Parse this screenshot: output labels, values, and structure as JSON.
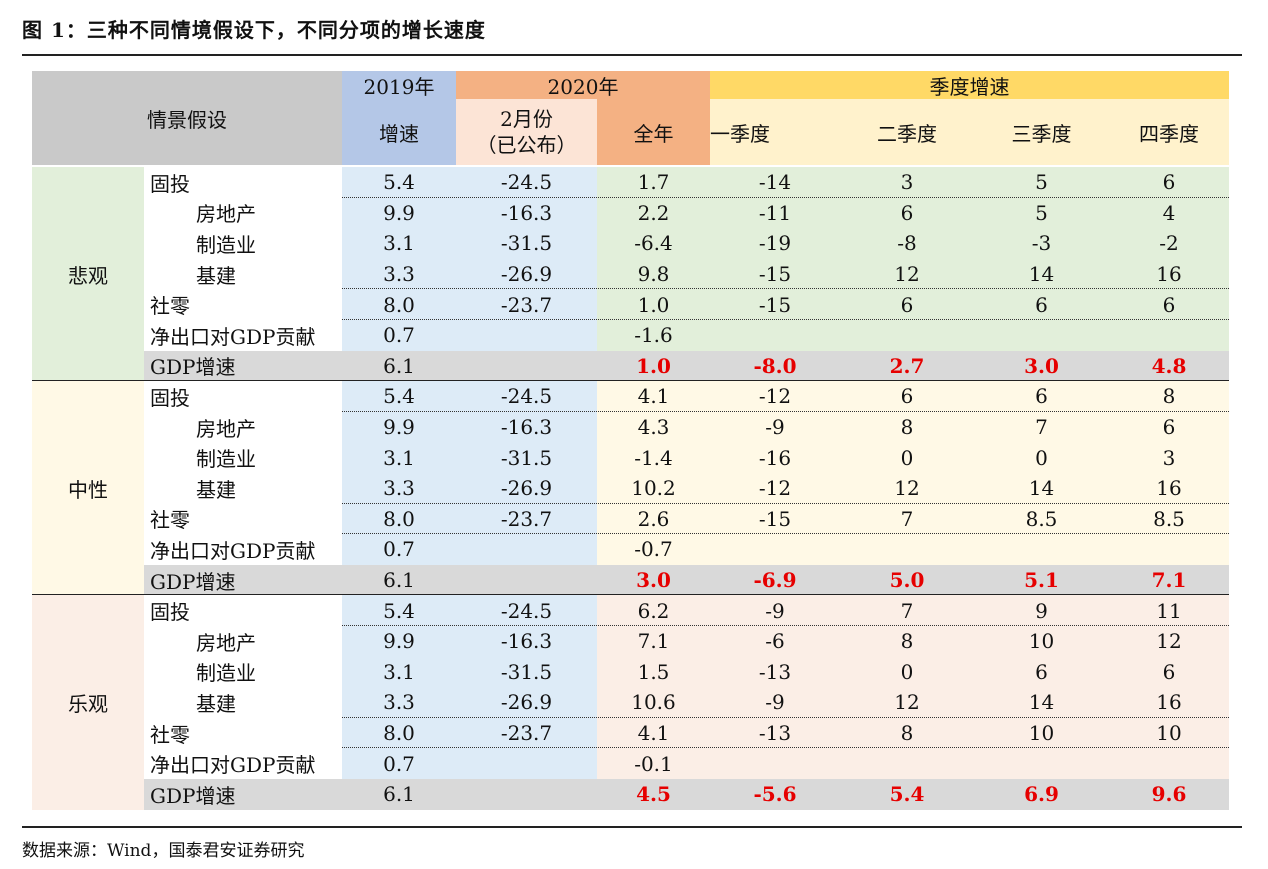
{
  "title": "图 1：三种不同情境假设下，不同分项的增长速度",
  "source": "数据来源：Wind，国泰君安证券研究",
  "header": {
    "scenario": "情景假设",
    "y2019": "2019年",
    "y2020": "2020年",
    "quarterly": "季度增速",
    "growth": "增速",
    "feb_line1": "2月份",
    "feb_line2": "（已公布）",
    "full_year": "全年",
    "q1": "一季度",
    "q2": "二季度",
    "q3": "三季度",
    "q4": "四季度"
  },
  "colors": {
    "header_gray": "#c9c9c9",
    "col2019_header": "#b4c7e7",
    "col2019_body": "#ddebf7",
    "col2020_header": "#f4b183",
    "col2020_light": "#fce4d6",
    "quarter_header": "#ffd966",
    "quarter_light": "#fff2cc",
    "pessimistic": "#e2efda",
    "neutral": "#fff9e6",
    "optimistic": "#fbeee6",
    "gdp_row": "#d9d9d9",
    "highlight_red": "#e60000"
  },
  "scenarios": [
    {
      "name": "悲观",
      "rows": [
        {
          "label": "固投",
          "indent": false,
          "v2019": "5.4",
          "feb": "-24.5",
          "full": "1.7",
          "q1": "-14",
          "q2": "3",
          "q3": "5",
          "q4": "6"
        },
        {
          "label": "房地产",
          "indent": true,
          "v2019": "9.9",
          "feb": "-16.3",
          "full": "2.2",
          "q1": "-11",
          "q2": "6",
          "q3": "5",
          "q4": "4"
        },
        {
          "label": "制造业",
          "indent": true,
          "v2019": "3.1",
          "feb": "-31.5",
          "full": "-6.4",
          "q1": "-19",
          "q2": "-8",
          "q3": "-3",
          "q4": "-2"
        },
        {
          "label": "基建",
          "indent": true,
          "v2019": "3.3",
          "feb": "-26.9",
          "full": "9.8",
          "q1": "-15",
          "q2": "12",
          "q3": "14",
          "q4": "16"
        },
        {
          "label": "社零",
          "indent": false,
          "v2019": "8.0",
          "feb": "-23.7",
          "full": "1.0",
          "q1": "-15",
          "q2": "6",
          "q3": "6",
          "q4": "6"
        },
        {
          "label": "净出口对GDP贡献",
          "indent": false,
          "v2019": "0.7",
          "feb": "",
          "full": "-1.6",
          "q1": "",
          "q2": "",
          "q3": "",
          "q4": ""
        },
        {
          "label": "GDP增速",
          "indent": false,
          "gdp": true,
          "v2019": "6.1",
          "feb": "",
          "full": "1.0",
          "q1": "-8.0",
          "q2": "2.7",
          "q3": "3.0",
          "q4": "4.8"
        }
      ]
    },
    {
      "name": "中性",
      "rows": [
        {
          "label": "固投",
          "indent": false,
          "v2019": "5.4",
          "feb": "-24.5",
          "full": "4.1",
          "q1": "-12",
          "q2": "6",
          "q3": "6",
          "q4": "8"
        },
        {
          "label": "房地产",
          "indent": true,
          "v2019": "9.9",
          "feb": "-16.3",
          "full": "4.3",
          "q1": "-9",
          "q2": "8",
          "q3": "7",
          "q4": "6"
        },
        {
          "label": "制造业",
          "indent": true,
          "v2019": "3.1",
          "feb": "-31.5",
          "full": "-1.4",
          "q1": "-16",
          "q2": "0",
          "q3": "0",
          "q4": "3"
        },
        {
          "label": "基建",
          "indent": true,
          "v2019": "3.3",
          "feb": "-26.9",
          "full": "10.2",
          "q1": "-12",
          "q2": "12",
          "q3": "14",
          "q4": "16"
        },
        {
          "label": "社零",
          "indent": false,
          "v2019": "8.0",
          "feb": "-23.7",
          "full": "2.6",
          "q1": "-15",
          "q2": "7",
          "q3": "8.5",
          "q4": "8.5"
        },
        {
          "label": "净出口对GDP贡献",
          "indent": false,
          "v2019": "0.7",
          "feb": "",
          "full": "-0.7",
          "q1": "",
          "q2": "",
          "q3": "",
          "q4": ""
        },
        {
          "label": "GDP增速",
          "indent": false,
          "gdp": true,
          "v2019": "6.1",
          "feb": "",
          "full": "3.0",
          "q1": "-6.9",
          "q2": "5.0",
          "q3": "5.1",
          "q4": "7.1"
        }
      ]
    },
    {
      "name": "乐观",
      "rows": [
        {
          "label": "固投",
          "indent": false,
          "v2019": "5.4",
          "feb": "-24.5",
          "full": "6.2",
          "q1": "-9",
          "q2": "7",
          "q3": "9",
          "q4": "11"
        },
        {
          "label": "房地产",
          "indent": true,
          "v2019": "9.9",
          "feb": "-16.3",
          "full": "7.1",
          "q1": "-6",
          "q2": "8",
          "q3": "10",
          "q4": "12"
        },
        {
          "label": "制造业",
          "indent": true,
          "v2019": "3.1",
          "feb": "-31.5",
          "full": "1.5",
          "q1": "-13",
          "q2": "0",
          "q3": "6",
          "q4": "6"
        },
        {
          "label": "基建",
          "indent": true,
          "v2019": "3.3",
          "feb": "-26.9",
          "full": "10.6",
          "q1": "-9",
          "q2": "12",
          "q3": "14",
          "q4": "16"
        },
        {
          "label": "社零",
          "indent": false,
          "v2019": "8.0",
          "feb": "-23.7",
          "full": "4.1",
          "q1": "-13",
          "q2": "8",
          "q3": "10",
          "q4": "10"
        },
        {
          "label": "净出口对GDP贡献",
          "indent": false,
          "v2019": "0.7",
          "feb": "",
          "full": "-0.1",
          "q1": "",
          "q2": "",
          "q3": "",
          "q4": ""
        },
        {
          "label": "GDP增速",
          "indent": false,
          "gdp": true,
          "v2019": "6.1",
          "feb": "",
          "full": "4.5",
          "q1": "-5.6",
          "q2": "5.4",
          "q3": "6.9",
          "q4": "9.6"
        }
      ]
    }
  ]
}
